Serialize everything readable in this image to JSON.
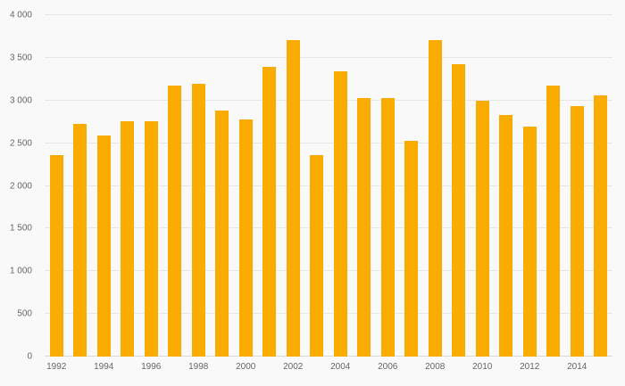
{
  "chart_data": {
    "type": "bar",
    "title": "",
    "xlabel": "",
    "ylabel": "",
    "x": [
      1992,
      1993,
      1994,
      1995,
      1996,
      1997,
      1998,
      1999,
      2000,
      2001,
      2002,
      2003,
      2004,
      2005,
      2006,
      2007,
      2008,
      2009,
      2010,
      2011,
      2012,
      2013,
      2014,
      2015
    ],
    "values": [
      2360,
      2730,
      2590,
      2760,
      2760,
      3170,
      3200,
      2880,
      2780,
      3390,
      3710,
      2360,
      3340,
      3030,
      3030,
      2530,
      3710,
      3430,
      3000,
      2830,
      2690,
      3180,
      2940,
      3060
    ],
    "ylim": [
      0,
      4000
    ],
    "ytick_interval": 500,
    "ytick_labels": [
      "0",
      "500",
      "1 000",
      "1 500",
      "2 000",
      "2 500",
      "3 000",
      "3 500",
      "4 000"
    ],
    "xtick_labels": [
      "1992",
      "1994",
      "1996",
      "1998",
      "2000",
      "2002",
      "2004",
      "2006",
      "2008",
      "2010",
      "2012",
      "2014"
    ],
    "xtick_every": 2,
    "bar_color": "#f9ab00",
    "grid": true,
    "legend_position": "none",
    "background_color": "#f9f9f9",
    "gridline_color": "#e6e6e6",
    "label_color": "#666666"
  }
}
